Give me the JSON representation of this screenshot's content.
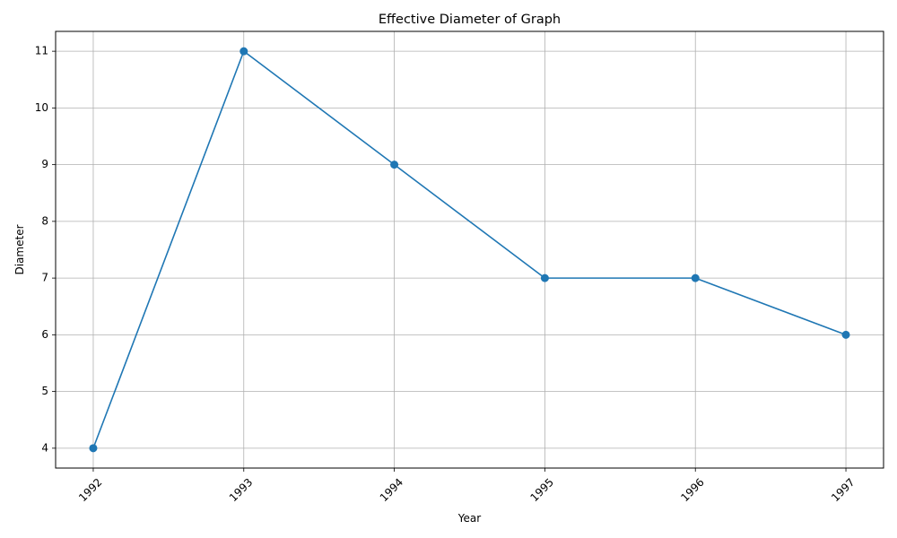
{
  "chart_data": {
    "type": "line",
    "title": "Effective Diameter of Graph",
    "xlabel": "Year",
    "ylabel": "Diameter",
    "x": [
      1992,
      1993,
      1994,
      1995,
      1996,
      1997
    ],
    "x_tick_labels": [
      "1992",
      "1993",
      "1994",
      "1995",
      "1996",
      "1997"
    ],
    "xlim": [
      1991.75,
      1997.25
    ],
    "x_tick_rotation_deg": 45,
    "y_ticks": [
      4,
      5,
      6,
      7,
      8,
      9,
      10,
      11
    ],
    "y_tick_labels": [
      "4",
      "5",
      "6",
      "7",
      "8",
      "9",
      "10",
      "11"
    ],
    "ylim": [
      3.65,
      11.35
    ],
    "series": [
      {
        "values": [
          4,
          11,
          9,
          7,
          7,
          6
        ],
        "color": "#1f77b4",
        "marker": "circle"
      }
    ],
    "grid": true,
    "legend": "none"
  }
}
